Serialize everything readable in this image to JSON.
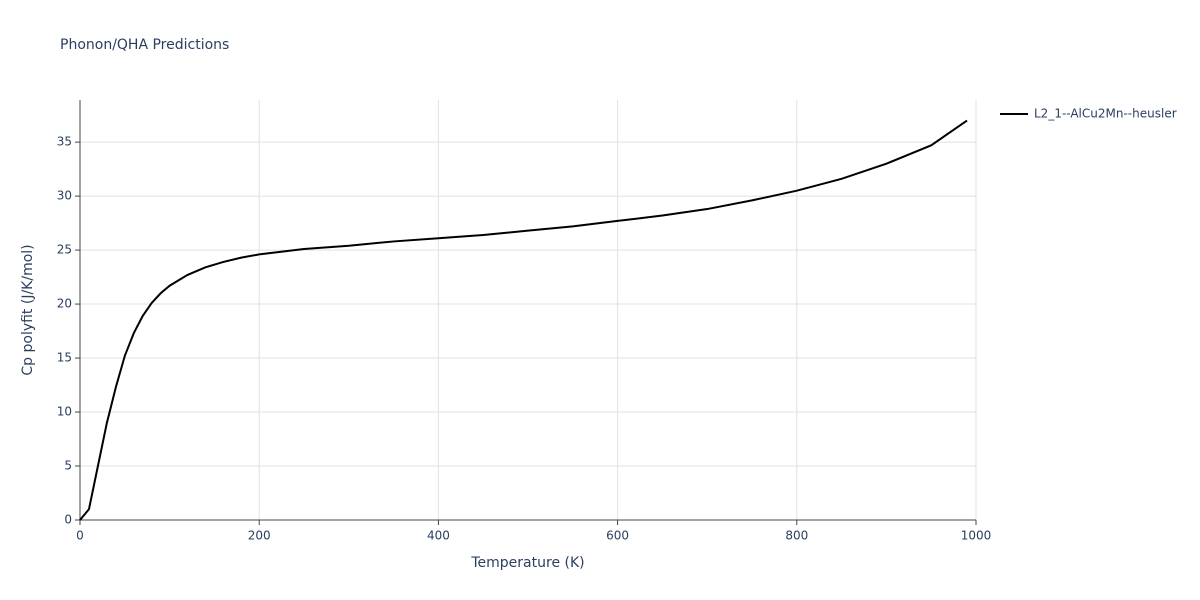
{
  "chart_data": {
    "type": "line",
    "title": "Phonon/QHA Predictions",
    "x_label": "Temperature (K)",
    "y_label": "Cp polyfit (J/K/mol)",
    "x": [
      0,
      10,
      20,
      30,
      40,
      50,
      60,
      70,
      80,
      90,
      100,
      120,
      140,
      160,
      180,
      200,
      250,
      300,
      350,
      400,
      450,
      500,
      550,
      600,
      650,
      700,
      750,
      800,
      850,
      900,
      950,
      990
    ],
    "series": [
      {
        "name": "L2_1--AlCu2Mn--heusler",
        "color": "#000000",
        "values": [
          0,
          1.0,
          5.0,
          9.0,
          12.3,
          15.2,
          17.3,
          18.9,
          20.1,
          21.0,
          21.7,
          22.7,
          23.4,
          23.9,
          24.3,
          24.6,
          25.1,
          25.4,
          25.8,
          26.1,
          26.4,
          26.8,
          27.2,
          27.7,
          28.2,
          28.8,
          29.6,
          30.5,
          31.6,
          33.0,
          34.7,
          37.0
        ]
      }
    ],
    "xlim": [
      0,
      1000
    ],
    "xticks": [
      0,
      200,
      400,
      600,
      800,
      1000
    ],
    "ylim": [
      0,
      38.9
    ],
    "yticks": [
      0,
      5,
      10,
      15,
      20,
      25,
      30,
      35
    ],
    "grid": true,
    "legend": "right"
  }
}
